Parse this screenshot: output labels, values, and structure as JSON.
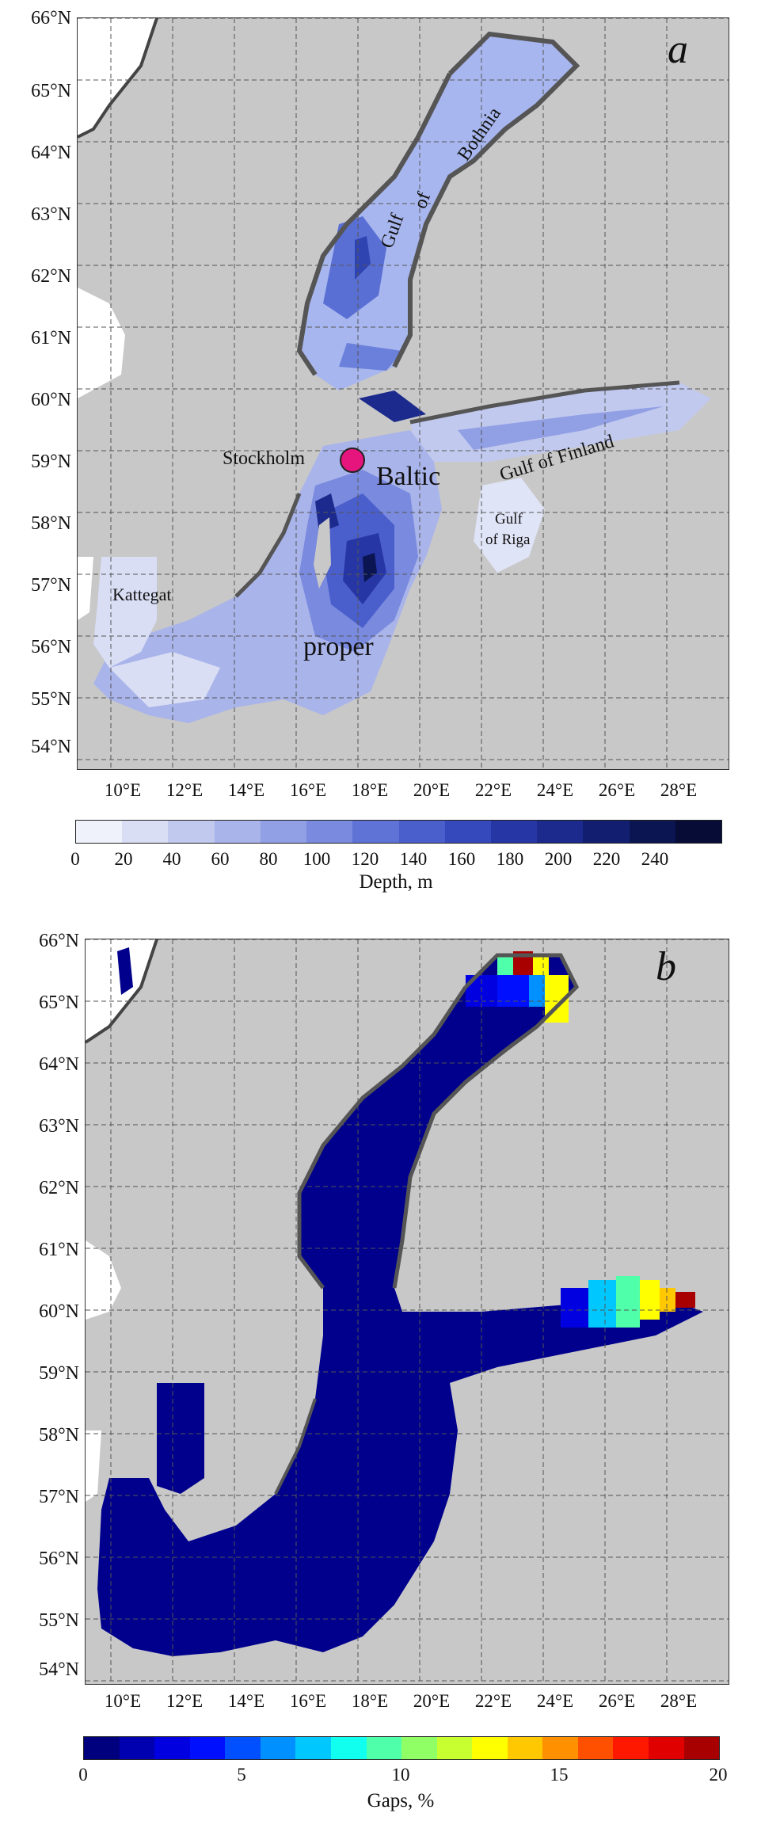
{
  "panel_a": {
    "label": "a",
    "lat_ticks": [
      "66°N",
      "65°N",
      "64°N",
      "63°N",
      "62°N",
      "61°N",
      "60°N",
      "59°N",
      "58°N",
      "57°N",
      "56°N",
      "55°N",
      "54°N"
    ],
    "lon_ticks": [
      "10°E",
      "12°E",
      "14°E",
      "16°E",
      "18°E",
      "20°E",
      "22°E",
      "24°E",
      "26°E",
      "28°E"
    ],
    "places": {
      "stockholm": "Stockholm",
      "gulf": "Gulf",
      "of": "of",
      "bothnia": "Bothnia",
      "gulf_of_finland": "Gulf of Finland",
      "baltic": "Baltic",
      "proper": "proper",
      "gulf_riga_1": "Gulf",
      "gulf_riga_2": "of Riga",
      "kattegat": "Kattegat"
    },
    "colorbar": {
      "ticks": [
        "0",
        "20",
        "40",
        "60",
        "80",
        "100",
        "120",
        "140",
        "160",
        "180",
        "200",
        "220",
        "240"
      ],
      "label": "Depth, m",
      "colors": [
        "#f0f2fb",
        "#d9def5",
        "#c1c9ef",
        "#a9b4ea",
        "#919fe4",
        "#7a8ade",
        "#5f72d6",
        "#4a5ecc",
        "#3549bc",
        "#2636a4",
        "#1b2a8c",
        "#121f70",
        "#0b1552",
        "#060c36"
      ]
    },
    "marker_color": "#e6157e"
  },
  "panel_b": {
    "label": "b",
    "lat_ticks": [
      "66°N",
      "65°N",
      "64°N",
      "63°N",
      "62°N",
      "61°N",
      "60°N",
      "59°N",
      "58°N",
      "57°N",
      "56°N",
      "55°N",
      "54°N"
    ],
    "lon_ticks": [
      "10°E",
      "12°E",
      "14°E",
      "16°E",
      "18°E",
      "20°E",
      "22°E",
      "24°E",
      "26°E",
      "28°E"
    ],
    "colorbar": {
      "ticks": [
        "0",
        "5",
        "10",
        "15",
        "20"
      ],
      "label": "Gaps, %",
      "colors": [
        "#00007f",
        "#0000b0",
        "#0000e0",
        "#0010ff",
        "#0050ff",
        "#0090ff",
        "#00c8ff",
        "#10ffee",
        "#50ffaa",
        "#90ff66",
        "#c8ff30",
        "#ffff00",
        "#ffc800",
        "#ff9000",
        "#ff5000",
        "#ff1800",
        "#e00000",
        "#a80000"
      ]
    },
    "sea_color": "#00008c"
  }
}
